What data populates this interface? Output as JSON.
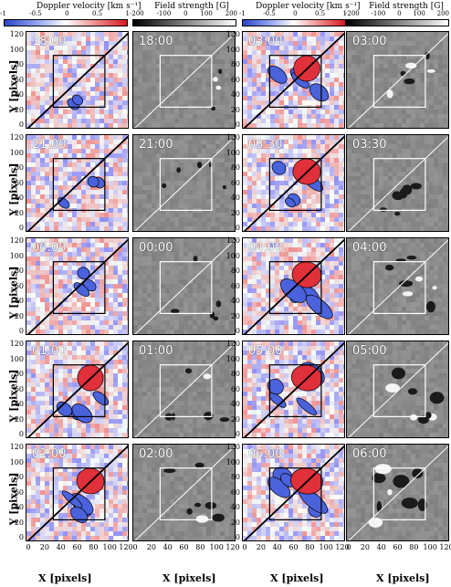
{
  "colorbars": {
    "doppler": {
      "title": "Doppler velocity [km s⁻¹]",
      "ticks": [
        "-1",
        "-0.5",
        "0",
        "0.5",
        "1"
      ]
    },
    "field": {
      "title": "Field strength [G]",
      "ticks": [
        "-200",
        "-100",
        "0",
        "100",
        "200"
      ]
    }
  },
  "axes": {
    "ylabel": "Y [pixels]",
    "xlabel": "X [pixels]",
    "yticks": [
      "120",
      "100",
      "80",
      "60",
      "40",
      "20",
      "0"
    ],
    "xticks": [
      "0",
      "20",
      "40",
      "60",
      "80",
      "100",
      "120"
    ]
  },
  "left_times": [
    "18:00",
    "21:00",
    "00:00",
    "01:00",
    "02:00"
  ],
  "right_times": [
    "03:00",
    "03:30",
    "04:00",
    "05:00",
    "06:00"
  ],
  "colors": {
    "doppler_blue": "#3b5bd6",
    "doppler_red": "#e0202a",
    "field_gray": "#8a8a8a"
  }
}
